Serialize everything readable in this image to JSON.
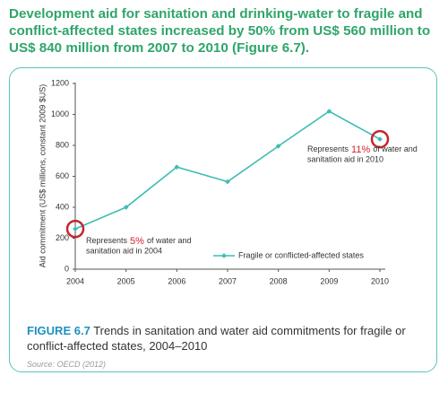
{
  "heading": {
    "lines": [
      "Development aid for sanitation and drinking-water to fragile and",
      "conflict-affected states increased by 50% from US$ 560 million to",
      "US$ 840 million from 2007 to 2010 (Figure 6.7)."
    ]
  },
  "chart_data": {
    "type": "line",
    "y_label": "Aid commitment (US$ millions, constant 2009 $US)",
    "categories": [
      "2004",
      "2005",
      "2006",
      "2007",
      "2008",
      "2009",
      "2010"
    ],
    "series": [
      {
        "name": "Fragile or conflicted-affected states",
        "color": "#3dbdb2",
        "values": [
          260,
          400,
          660,
          565,
          795,
          1020,
          840
        ]
      }
    ],
    "ylim": [
      0,
      1200
    ],
    "yticks": [
      0,
      200,
      400,
      600,
      800,
      1000,
      1200
    ],
    "annotations": [
      {
        "before": "Represents",
        "highlight": "5%",
        "after": "of water and",
        "line2": "sanitation aid in 2004"
      },
      {
        "before": "Represents",
        "highlight": "11%",
        "after": "of water and",
        "line2": "sanitation aid in 2010"
      }
    ]
  },
  "caption": {
    "label": "FIGURE 6.7",
    "text": "Trends in sanitation and water aid commitments for fragile or conflict-affected states, 2004–2010"
  },
  "source": "Source: OECD (2012)"
}
